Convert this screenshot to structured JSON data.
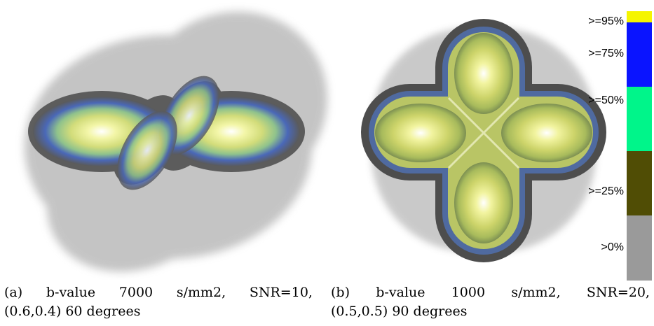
{
  "figure": {
    "captions": [
      {
        "label": "(a)",
        "words": [
          "b-value",
          "7000",
          "s/mm2,",
          "SNR=10,"
        ],
        "line2": "(0.6,0.4) 60 degrees"
      },
      {
        "label": "(b)",
        "words": [
          "b-value",
          "1000",
          "s/mm2,",
          "SNR=20,"
        ],
        "line2": "(0.5,0.5) 90 degrees"
      }
    ],
    "colorbar": {
      "labels": [
        ">=95%",
        ">=75%",
        ">=50%",
        ">=25%",
        ">0%"
      ],
      "colors": [
        "#f5f500",
        "#0a14ff",
        "#00f58a",
        "#504d05",
        "#9a9a9a"
      ]
    }
  }
}
